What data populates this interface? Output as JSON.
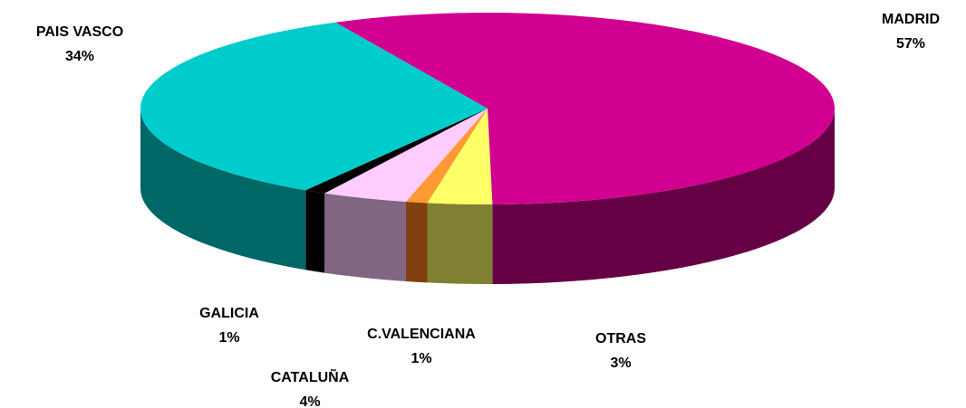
{
  "chart_data": {
    "type": "pie3d",
    "categories": [
      "MADRID",
      "OTRAS",
      "C.VALENCIANA",
      "CATALUÑA",
      "GALICIA",
      "PAIS VASCO"
    ],
    "values": [
      57,
      3,
      1,
      4,
      1,
      34
    ],
    "value_labels": [
      "57%",
      "3%",
      "1%",
      "4%",
      "1%",
      "34%"
    ],
    "colors": [
      "#d10090",
      "#ffff66",
      "#ff9933",
      "#ffccff",
      "#000000",
      "#00cccc"
    ],
    "side_colors": [
      "#660044",
      "#808033",
      "#804010",
      "#806680",
      "#000000",
      "#006666"
    ]
  }
}
